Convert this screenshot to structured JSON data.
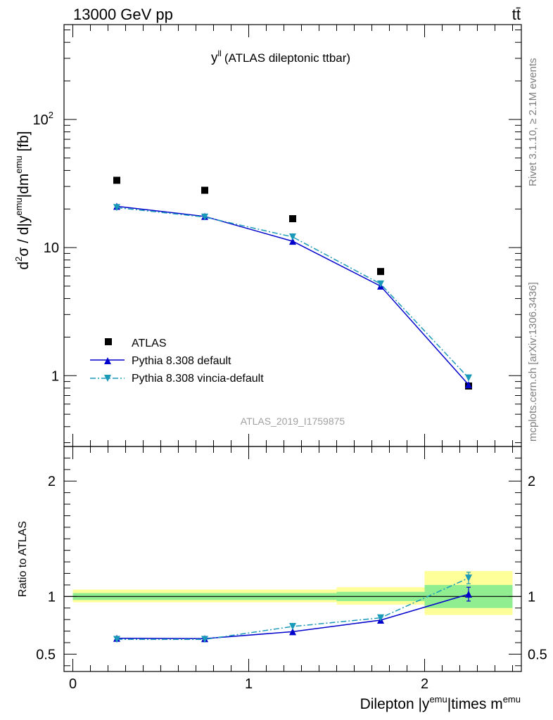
{
  "header": {
    "left_label": "13000 GeV pp",
    "right_label": "tt̄"
  },
  "side_labels": {
    "rivet": "Rivet 3.1.10, ≥ 2.1M events",
    "mcplots": "mcplots.cern.ch [arXiv:1306.3436]"
  },
  "colors": {
    "data": "#000000",
    "pythia_default": "#0000cc",
    "vincia_default": "#1a9ab8",
    "band_inner": "#90ee90",
    "band_outer": "#ffff99"
  },
  "chart_data": [
    {
      "type": "scatter",
      "title_main": "y",
      "title_sup": "ll",
      "title_rest": "(ATLAS dileptonic ttbar)",
      "analysis_id": "ATLAS_2019_I1759875",
      "ylabel": "d²σ / d|y^emu|dm^emu [fb]",
      "ylabel_parts": {
        "a": "d",
        "a_sup": "2",
        "b": "σ / d|y",
        "b_sup": "emu",
        "c": "|dm",
        "c_sup": "emu",
        "d": " [fb]"
      },
      "yscale": "log",
      "ylim": [
        0.28,
        550
      ],
      "xlim": [
        -0.05,
        2.55
      ],
      "ytick_labels": [
        {
          "value": 1,
          "label": "1"
        },
        {
          "value": 10,
          "label": "10"
        },
        {
          "value": 100,
          "label": "10",
          "sup": "2"
        }
      ],
      "legend": {
        "position": "lower-left",
        "entries": [
          "ATLAS",
          "Pythia 8.308 default",
          "Pythia 8.308 vincia-default"
        ]
      },
      "series": [
        {
          "name": "ATLAS",
          "style": "square",
          "x": [
            0.25,
            0.75,
            1.25,
            1.75,
            2.25
          ],
          "y": [
            33.5,
            28.0,
            16.8,
            6.5,
            0.83
          ]
        },
        {
          "name": "Pythia 8.308 default",
          "style": "line-triangle-up",
          "x": [
            0.25,
            0.75,
            1.25,
            1.75,
            2.25
          ],
          "y": [
            21.0,
            17.5,
            11.2,
            5.0,
            0.85
          ]
        },
        {
          "name": "Pythia 8.308 vincia-default",
          "style": "dashdot-triangle-down",
          "x": [
            0.25,
            0.75,
            1.25,
            1.75,
            2.25
          ],
          "y": [
            20.5,
            17.3,
            12.1,
            5.2,
            0.96
          ]
        }
      ]
    },
    {
      "type": "line",
      "ylabel": "Ratio to ATLAS",
      "xlabel_parts": {
        "a": "Dilepton |y",
        "a_sup": "emu",
        "b": "|times m",
        "b_sup": "emu"
      },
      "xlim": [
        -0.05,
        2.55
      ],
      "ylim": [
        0.35,
        2.3
      ],
      "xtick_labels": [
        {
          "value": 0,
          "label": "0"
        },
        {
          "value": 1,
          "label": "1"
        },
        {
          "value": 2,
          "label": "2"
        }
      ],
      "ytick_labels": [
        {
          "value": 0.5,
          "label": "0.5"
        },
        {
          "value": 1,
          "label": "1"
        },
        {
          "value": 2,
          "label": "2"
        }
      ],
      "reference_line": 1.0,
      "uncertainty_bands": [
        {
          "x0": 0.0,
          "x1": 1.0,
          "inner": [
            0.97,
            1.03
          ],
          "outer": [
            0.95,
            1.06
          ]
        },
        {
          "x0": 1.0,
          "x1": 1.5,
          "inner": [
            0.97,
            1.03
          ],
          "outer": [
            0.95,
            1.06
          ]
        },
        {
          "x0": 1.5,
          "x1": 2.0,
          "inner": [
            0.96,
            1.04
          ],
          "outer": [
            0.93,
            1.08
          ]
        },
        {
          "x0": 2.0,
          "x1": 2.5,
          "inner": [
            0.9,
            1.1
          ],
          "outer": [
            0.84,
            1.22
          ]
        }
      ],
      "series": [
        {
          "name": "Pythia 8.308 default",
          "style": "line-triangle-up",
          "x": [
            0.25,
            0.75,
            1.25,
            1.75,
            2.25
          ],
          "y": [
            0.638,
            0.635,
            0.695,
            0.795,
            1.02
          ],
          "yerr": [
            0,
            0,
            0,
            0,
            0.06
          ]
        },
        {
          "name": "Pythia 8.308 vincia-default",
          "style": "dashdot-triangle-down",
          "x": [
            0.25,
            0.75,
            1.25,
            1.75,
            2.25
          ],
          "y": [
            0.628,
            0.628,
            0.74,
            0.815,
            1.16
          ],
          "yerr": [
            0,
            0,
            0,
            0,
            0.05
          ]
        }
      ]
    }
  ]
}
